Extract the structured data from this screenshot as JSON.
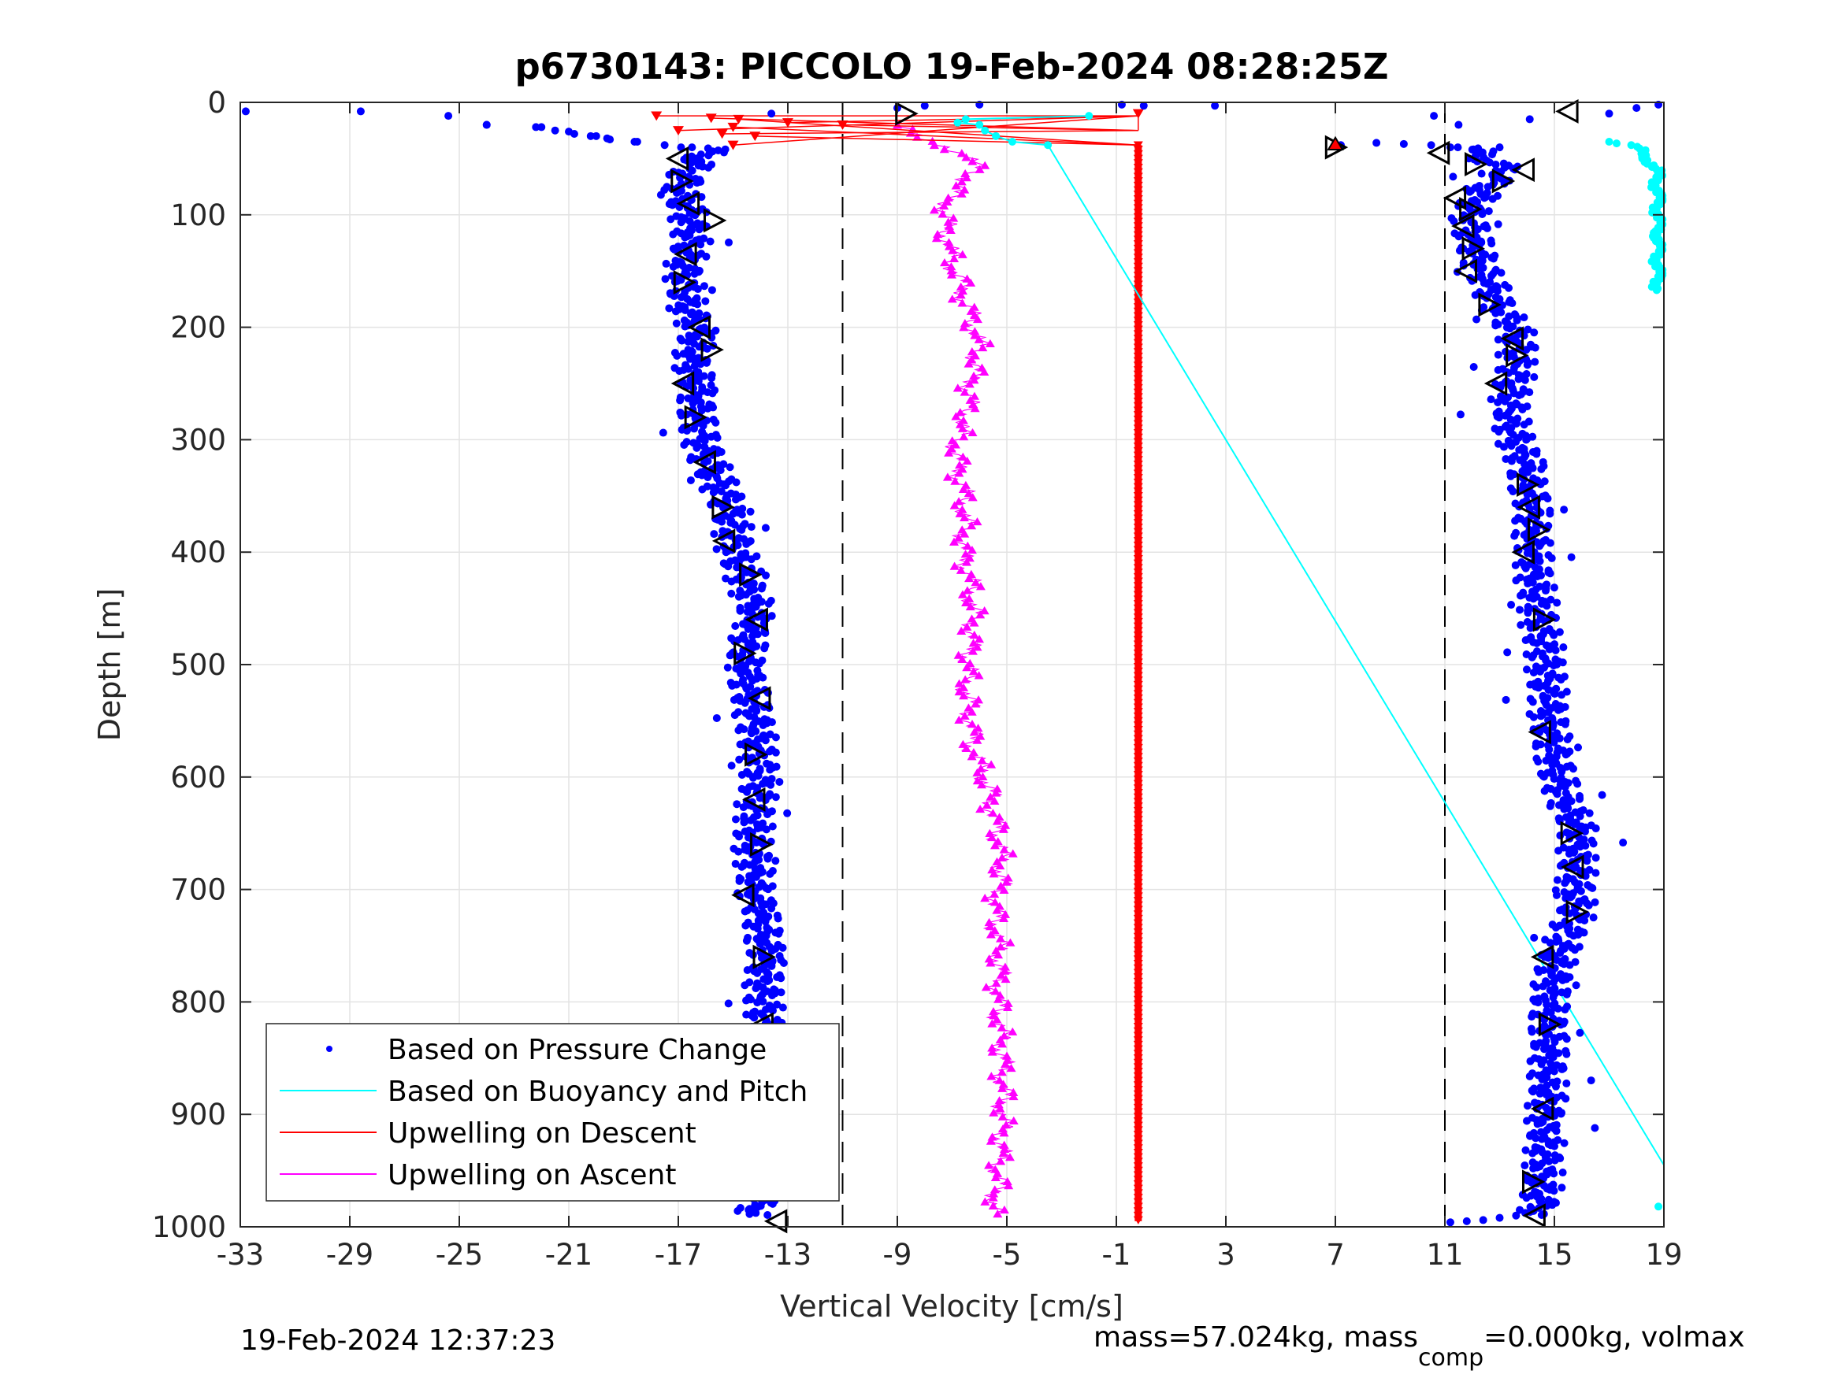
{
  "chart_data": {
    "type": "scatter",
    "title": "p6730143: PICCOLO 19-Feb-2024 08:28:25Z",
    "xlabel": "Vertical Velocity [cm/s]",
    "ylabel": "Depth [m]",
    "xlim": [
      -33,
      19
    ],
    "ylim": [
      0,
      1000
    ],
    "y_reversed": true,
    "grid": true,
    "xticks": [
      "-33",
      "-29",
      "-25",
      "-21",
      "-17",
      "-13",
      "-9",
      "-5",
      "-1",
      "3",
      "7",
      "11",
      "15",
      "19"
    ],
    "yticks": [
      "0",
      "100",
      "200",
      "300",
      "400",
      "500",
      "600",
      "700",
      "800",
      "900",
      "1000"
    ],
    "reference_lines_x": [
      -11,
      11
    ],
    "legend_position": "bottom-left",
    "series": [
      {
        "name": "Based on Pressure Change",
        "color": "#0000ff",
        "marker": "dot",
        "descent_profile": {
          "depth": [
            40,
            60,
            80,
            100,
            120,
            150,
            180,
            200,
            230,
            260,
            290,
            320,
            360,
            400,
            450,
            500,
            550,
            600,
            650,
            700,
            750,
            800,
            850,
            900,
            950,
            990
          ],
          "velocity": [
            -15.8,
            -16.6,
            -16.9,
            -16.6,
            -16.5,
            -16.8,
            -16.7,
            -16.3,
            -16.5,
            -16.3,
            -16.3,
            -15.9,
            -15.1,
            -14.9,
            -14.2,
            -14.6,
            -14.2,
            -14.0,
            -14.3,
            -14.2,
            -13.8,
            -13.9,
            -13.8,
            -13.7,
            -13.8,
            -14.2
          ]
        },
        "ascent_profile": {
          "depth": [
            990,
            960,
            900,
            850,
            800,
            760,
            720,
            680,
            650,
            600,
            550,
            500,
            450,
            400,
            360,
            320,
            280,
            250,
            220,
            200,
            180,
            150,
            120,
            100,
            80,
            60,
            40
          ],
          "velocity": [
            14.4,
            14.6,
            14.7,
            14.8,
            14.8,
            15.1,
            15.8,
            15.8,
            15.9,
            15.1,
            14.8,
            14.7,
            14.4,
            14.2,
            14.2,
            13.9,
            13.3,
            13.5,
            13.7,
            13.5,
            12.9,
            12.4,
            12.0,
            11.9,
            12.3,
            13.2,
            11.8
          ]
        },
        "surface_points": {
          "depth": [
            8,
            8,
            12,
            20,
            22,
            25,
            28,
            30,
            32,
            35,
            10,
            5,
            3,
            2,
            2,
            3,
            3,
            12,
            20,
            15,
            10,
            5,
            2
          ],
          "velocity": [
            -32.8,
            -28.6,
            -25.4,
            -24.0,
            -22.2,
            -21.5,
            -20.8,
            -20.2,
            -19.6,
            -18.6,
            -13.6,
            -9.0,
            -8.0,
            -6.0,
            -0.8,
            0.0,
            2.6,
            10.6,
            11.5,
            14.1,
            17.0,
            18.0,
            18.8
          ]
        }
      },
      {
        "name": "Based on Buoyancy and Pitch",
        "color": "#00ffff",
        "marker": "line",
        "line": {
          "depth": [
            38,
            945
          ],
          "velocity": [
            -3.5,
            19
          ]
        },
        "near_surface_points": {
          "depth": [
            12,
            15,
            18,
            20,
            25,
            30,
            35,
            38
          ],
          "velocity": [
            -2.0,
            -6.5,
            -6.8,
            -6.0,
            -5.8,
            -5.4,
            -4.8,
            -3.5
          ]
        },
        "right_edge_points": {
          "depth": [
            35,
            40,
            50,
            60,
            80,
            100,
            120,
            140,
            160,
            168,
            982
          ],
          "velocity": [
            17.0,
            18.0,
            18.4,
            18.7,
            18.8,
            18.8,
            18.8,
            18.8,
            18.8,
            18.8,
            18.8
          ]
        }
      },
      {
        "name": "Upwelling on Descent",
        "color": "#ff0000",
        "marker": "triangle-down",
        "constant_velocity": -0.2,
        "depth_range": [
          38,
          995
        ],
        "near_surface_points": {
          "depth": [
            12,
            14,
            15,
            18,
            20,
            22,
            25,
            28,
            30,
            38,
            10
          ],
          "velocity": [
            -17.8,
            -15.8,
            -14.8,
            -13.0,
            -11.0,
            -15.0,
            -17.0,
            -15.4,
            -14.2,
            -15.0,
            -0.2
          ]
        }
      },
      {
        "name": "Upwelling on Ascent",
        "color": "#ff00ff",
        "marker": "triangle-up",
        "profile": {
          "depth": [
            990,
            960,
            920,
            880,
            840,
            800,
            760,
            720,
            680,
            650,
            620,
            600,
            580,
            550,
            520,
            500,
            480,
            460,
            420,
            400,
            380,
            350,
            320,
            300,
            280,
            260,
            240,
            220,
            200,
            180,
            160,
            140,
            120,
            100,
            80,
            60,
            40,
            30,
            20
          ],
          "velocity": [
            -5.5,
            -5.3,
            -5.2,
            -5.1,
            -5.2,
            -5.3,
            -5.3,
            -5.4,
            -5.2,
            -5.3,
            -5.6,
            -5.8,
            -6.2,
            -6.3,
            -6.5,
            -6.4,
            -6.3,
            -6.2,
            -6.4,
            -6.6,
            -6.5,
            -6.6,
            -6.8,
            -6.8,
            -6.5,
            -6.4,
            -6.2,
            -6.0,
            -6.2,
            -6.5,
            -6.7,
            -7.0,
            -7.2,
            -7.3,
            -7.0,
            -6.0,
            -7.0,
            -8.5,
            -9.0
          ]
        }
      }
    ],
    "reference_markers": {
      "marker": "triangle outline",
      "color": "#000000",
      "left": {
        "depth": [
          10,
          50,
          70,
          90,
          105,
          135,
          160,
          200,
          220,
          250,
          280,
          320,
          360,
          390,
          420,
          460,
          490,
          530,
          580,
          620,
          660,
          705,
          760,
          820,
          900,
          930,
          960,
          995
        ],
        "velocity": [
          -8.7,
          -17.0,
          -16.9,
          -16.6,
          -15.7,
          -16.7,
          -16.8,
          -16.2,
          -15.8,
          -16.8,
          -16.4,
          -16.0,
          -15.4,
          -15.3,
          -14.4,
          -14.1,
          -14.6,
          -14.0,
          -14.2,
          -14.2,
          -14.0,
          -14.6,
          -13.9,
          -13.9,
          -13.6,
          -13.9,
          -14.3,
          -13.4
        ]
      },
      "right": {
        "depth": [
          8,
          40,
          45,
          55,
          60,
          70,
          85,
          95,
          110,
          130,
          150,
          180,
          210,
          225,
          250,
          340,
          360,
          380,
          400,
          460,
          560,
          650,
          680,
          720,
          760,
          820,
          895,
          960,
          990
        ],
        "velocity": [
          15.5,
          7.0,
          10.8,
          12.1,
          13.9,
          13.1,
          11.4,
          11.9,
          11.7,
          12.0,
          11.8,
          12.6,
          13.5,
          13.6,
          12.9,
          14.0,
          14.1,
          14.4,
          13.9,
          14.6,
          14.5,
          15.6,
          15.7,
          15.8,
          14.6,
          14.8,
          14.6,
          14.2,
          14.3
        ]
      }
    }
  },
  "footer": {
    "timestamp": "19-Feb-2024 12:37:23",
    "mass_prefix": "mass=57.024kg, mass",
    "mass_sub": "comp",
    "mass_suffix": "=0.000kg, volmax"
  }
}
